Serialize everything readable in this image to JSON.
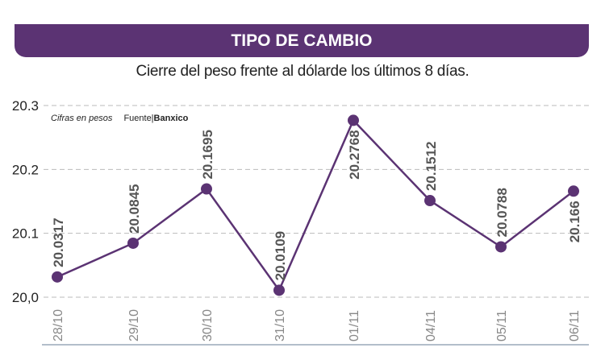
{
  "header": {
    "title": "TIPO DE CAMBIO",
    "subtitle": "Cierre del peso frente al dólarde los últimos 8 días."
  },
  "note": {
    "units": "Cifras en pesos",
    "source_label": "Fuente|",
    "source": "Banxico"
  },
  "colors": {
    "accent": "#5b3373",
    "grid": "#bbbbbb",
    "axis_text": "#888888",
    "value_text": "#555555"
  },
  "chart_data": {
    "type": "line",
    "categories": [
      "28/10",
      "29/10",
      "30/10",
      "31/10",
      "01/11",
      "04/11",
      "05/11",
      "06/11"
    ],
    "values": [
      20.0317,
      20.0845,
      20.1695,
      20.0109,
      20.2768,
      20.1512,
      20.0788,
      20.166
    ],
    "value_labels": [
      "20.0317",
      "20.0845",
      "20.1695",
      "20.0109",
      "20.2768",
      "20.1512",
      "20.0788",
      "20.166"
    ],
    "ylim": [
      20.0,
      20.3
    ],
    "yticks": [
      "20,0",
      "20.1",
      "20.2",
      "20.3"
    ],
    "grid": true
  }
}
